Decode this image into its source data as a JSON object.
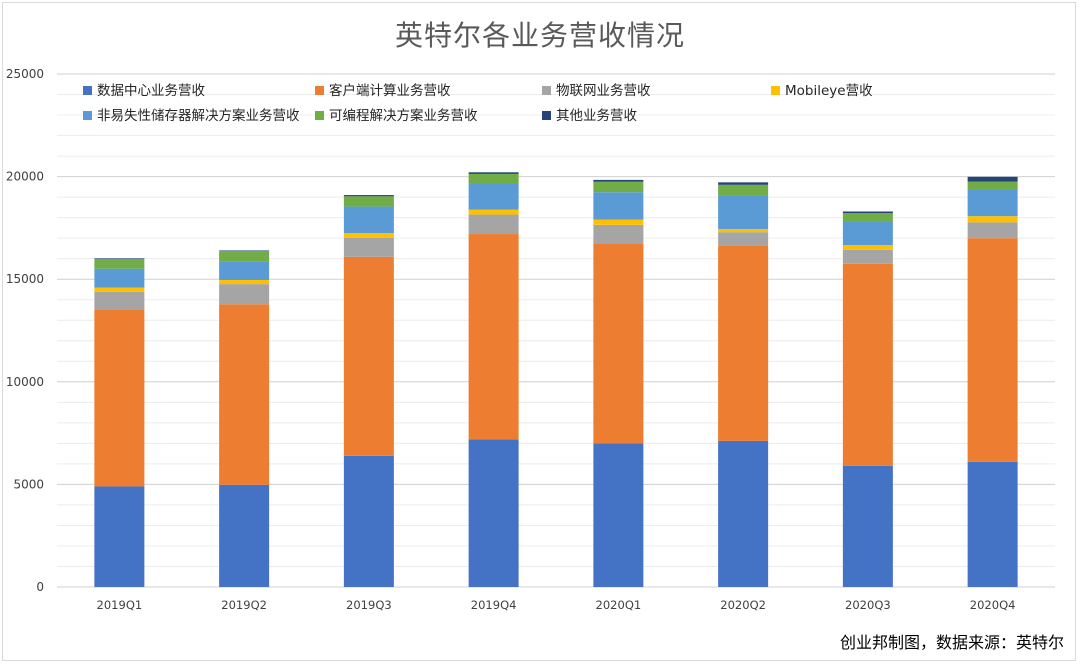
{
  "chart_data": {
    "type": "bar",
    "stacked": true,
    "title": "英特尔各业务营收情况",
    "categories": [
      "2019Q1",
      "2019Q2",
      "2019Q3",
      "2019Q4",
      "2020Q1",
      "2020Q2",
      "2020Q3",
      "2020Q4"
    ],
    "ylim": [
      0,
      25000
    ],
    "yticks": [
      "0",
      "5000",
      "10000",
      "15000",
      "20000",
      "25000"
    ],
    "grid": true,
    "legend_position": "top",
    "series": [
      {
        "name": "数据中心业务营收",
        "color": "#4472c4",
        "values": [
          4900,
          4980,
          6390,
          7200,
          7000,
          7120,
          5900,
          6100
        ]
      },
      {
        "name": "客户端计算业务营收",
        "color": "#ed7d31",
        "values": [
          8600,
          8800,
          9700,
          10000,
          9750,
          9500,
          9850,
          10900
        ]
      },
      {
        "name": "物联网业务营收",
        "color": "#a5a5a5",
        "values": [
          880,
          980,
          930,
          950,
          900,
          670,
          680,
          770
        ]
      },
      {
        "name": "Mobileye营收",
        "color": "#ffc000",
        "values": [
          210,
          200,
          230,
          240,
          250,
          150,
          230,
          300
        ]
      },
      {
        "name": "非易失性储存器解决方案业务营收",
        "color": "#5b9bd5",
        "values": [
          920,
          920,
          1290,
          1250,
          1340,
          1660,
          1150,
          1300
        ]
      },
      {
        "name": "可编程解决方案业务营收",
        "color": "#70ad47",
        "values": [
          480,
          490,
          500,
          490,
          510,
          500,
          410,
          390
        ]
      },
      {
        "name": "其他业务营收",
        "color": "#264478",
        "values": [
          30,
          30,
          60,
          80,
          90,
          120,
          80,
          230
        ]
      }
    ]
  },
  "source_note": "创业邦制图，数据来源：英特尔"
}
